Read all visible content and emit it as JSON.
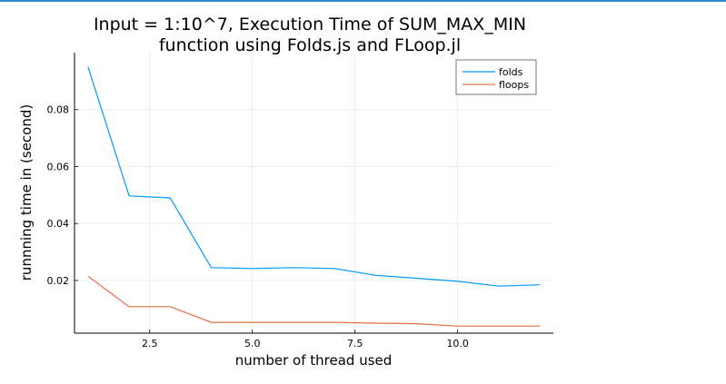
{
  "chart_data": {
    "type": "line",
    "title_line1": "Input = 1:10^7, Execution Time of SUM_MAX_MIN",
    "title_line2": "function using Folds.js and FLoop.jl",
    "xlabel": "number of thread used",
    "ylabel": "runnning time in (second)",
    "xlim": [
      0.67,
      12.33
    ],
    "ylim": [
      0.0015,
      0.1
    ],
    "xticks": [
      2.5,
      5.0,
      7.5,
      10.0
    ],
    "xtick_labels": [
      "2.5",
      "5.0",
      "7.5",
      "10.0"
    ],
    "yticks": [
      0.02,
      0.04,
      0.06,
      0.08
    ],
    "ytick_labels": [
      "0.02",
      "0.04",
      "0.06",
      "0.08"
    ],
    "grid": true,
    "legend_position": "top-right",
    "x": [
      1,
      2,
      3,
      4,
      5,
      6,
      7,
      8,
      9,
      10,
      11,
      12
    ],
    "series": [
      {
        "name": "folds",
        "color": "#009af9",
        "values": [
          0.095,
          0.0497,
          0.049,
          0.0245,
          0.0242,
          0.0245,
          0.0242,
          0.0218,
          0.0208,
          0.0197,
          0.018,
          0.0185
        ]
      },
      {
        "name": "floops",
        "color": "#e26f46",
        "values": [
          0.0215,
          0.0108,
          0.0108,
          0.0053,
          0.0053,
          0.0053,
          0.0053,
          0.005,
          0.0048,
          0.004,
          0.004,
          0.004
        ]
      }
    ]
  }
}
